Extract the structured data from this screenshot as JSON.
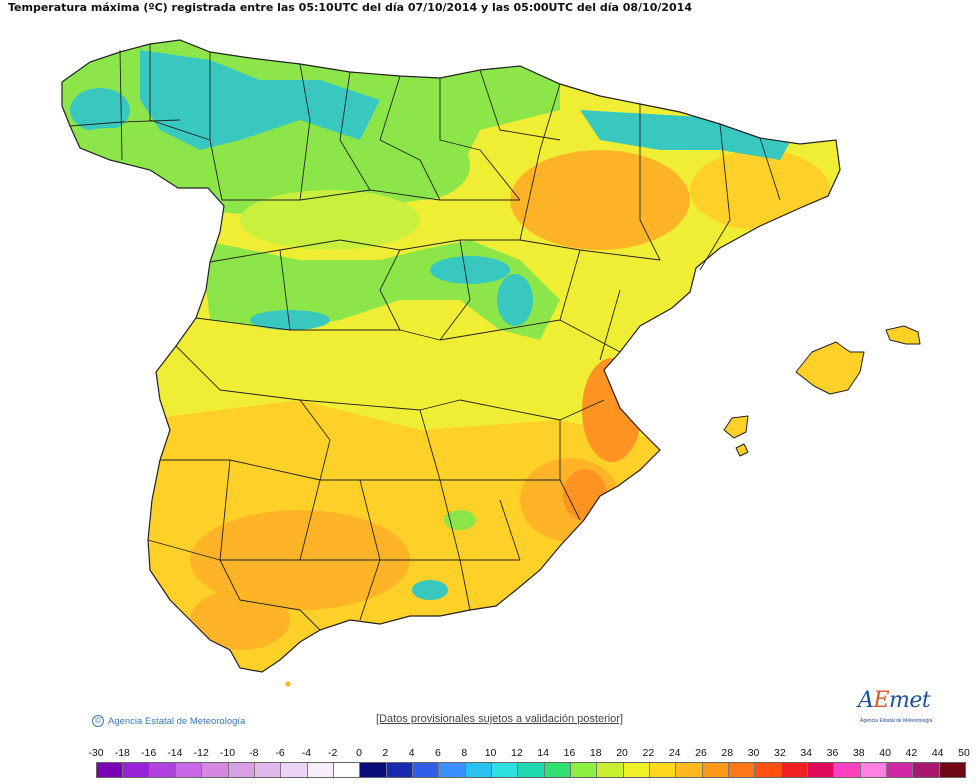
{
  "title": "Temperatura máxima (ºC) registrada entre las 05:10UTC del día 07/10/2014 y las 05:00UTC del día 08/10/2014",
  "copyright": "Agencia Estatal de Meteorología",
  "disclaimer": "[Datos provisionales sujetos a validación posterior]",
  "logo": {
    "text_a": "A",
    "text_e": "E",
    "text_rest": "met",
    "subtitle": "Agencia Estatal de Meteorología"
  },
  "legend": {
    "labels": [
      "-30",
      "-18",
      "-16",
      "-14",
      "-12",
      "-10",
      "-8",
      "-6",
      "-4",
      "-2",
      "0",
      "2",
      "4",
      "6",
      "8",
      "10",
      "12",
      "14",
      "16",
      "18",
      "20",
      "22",
      "24",
      "26",
      "28",
      "30",
      "32",
      "34",
      "36",
      "38",
      "40",
      "42",
      "44",
      "50"
    ],
    "colors": [
      "#7a00b8",
      "#9a20d8",
      "#b040e0",
      "#c868e8",
      "#d488e0",
      "#d8a0e4",
      "#e0b8ec",
      "#ecd4f4",
      "#f6ecfa",
      "#ffffff",
      "#0a0a7a",
      "#1a2ab0",
      "#2f5ee8",
      "#3a90ff",
      "#2ac0f0",
      "#2ee0e0",
      "#20d8b0",
      "#30e070",
      "#8cf040",
      "#c8f030",
      "#f0f028",
      "#ffd820",
      "#ffb820",
      "#ff9818",
      "#ff7818",
      "#ff5010",
      "#f02020",
      "#e00858",
      "#ff40c0",
      "#ff80e0",
      "#d028a8",
      "#a81870",
      "#700818"
    ]
  },
  "map_colors": {
    "teal": "#38c8c0",
    "green": "#8ce64a",
    "lime": "#c8f03c",
    "yellow": "#f0ee34",
    "amber": "#ffd028",
    "orange": "#ffb428",
    "deep_orange": "#ff9422"
  }
}
